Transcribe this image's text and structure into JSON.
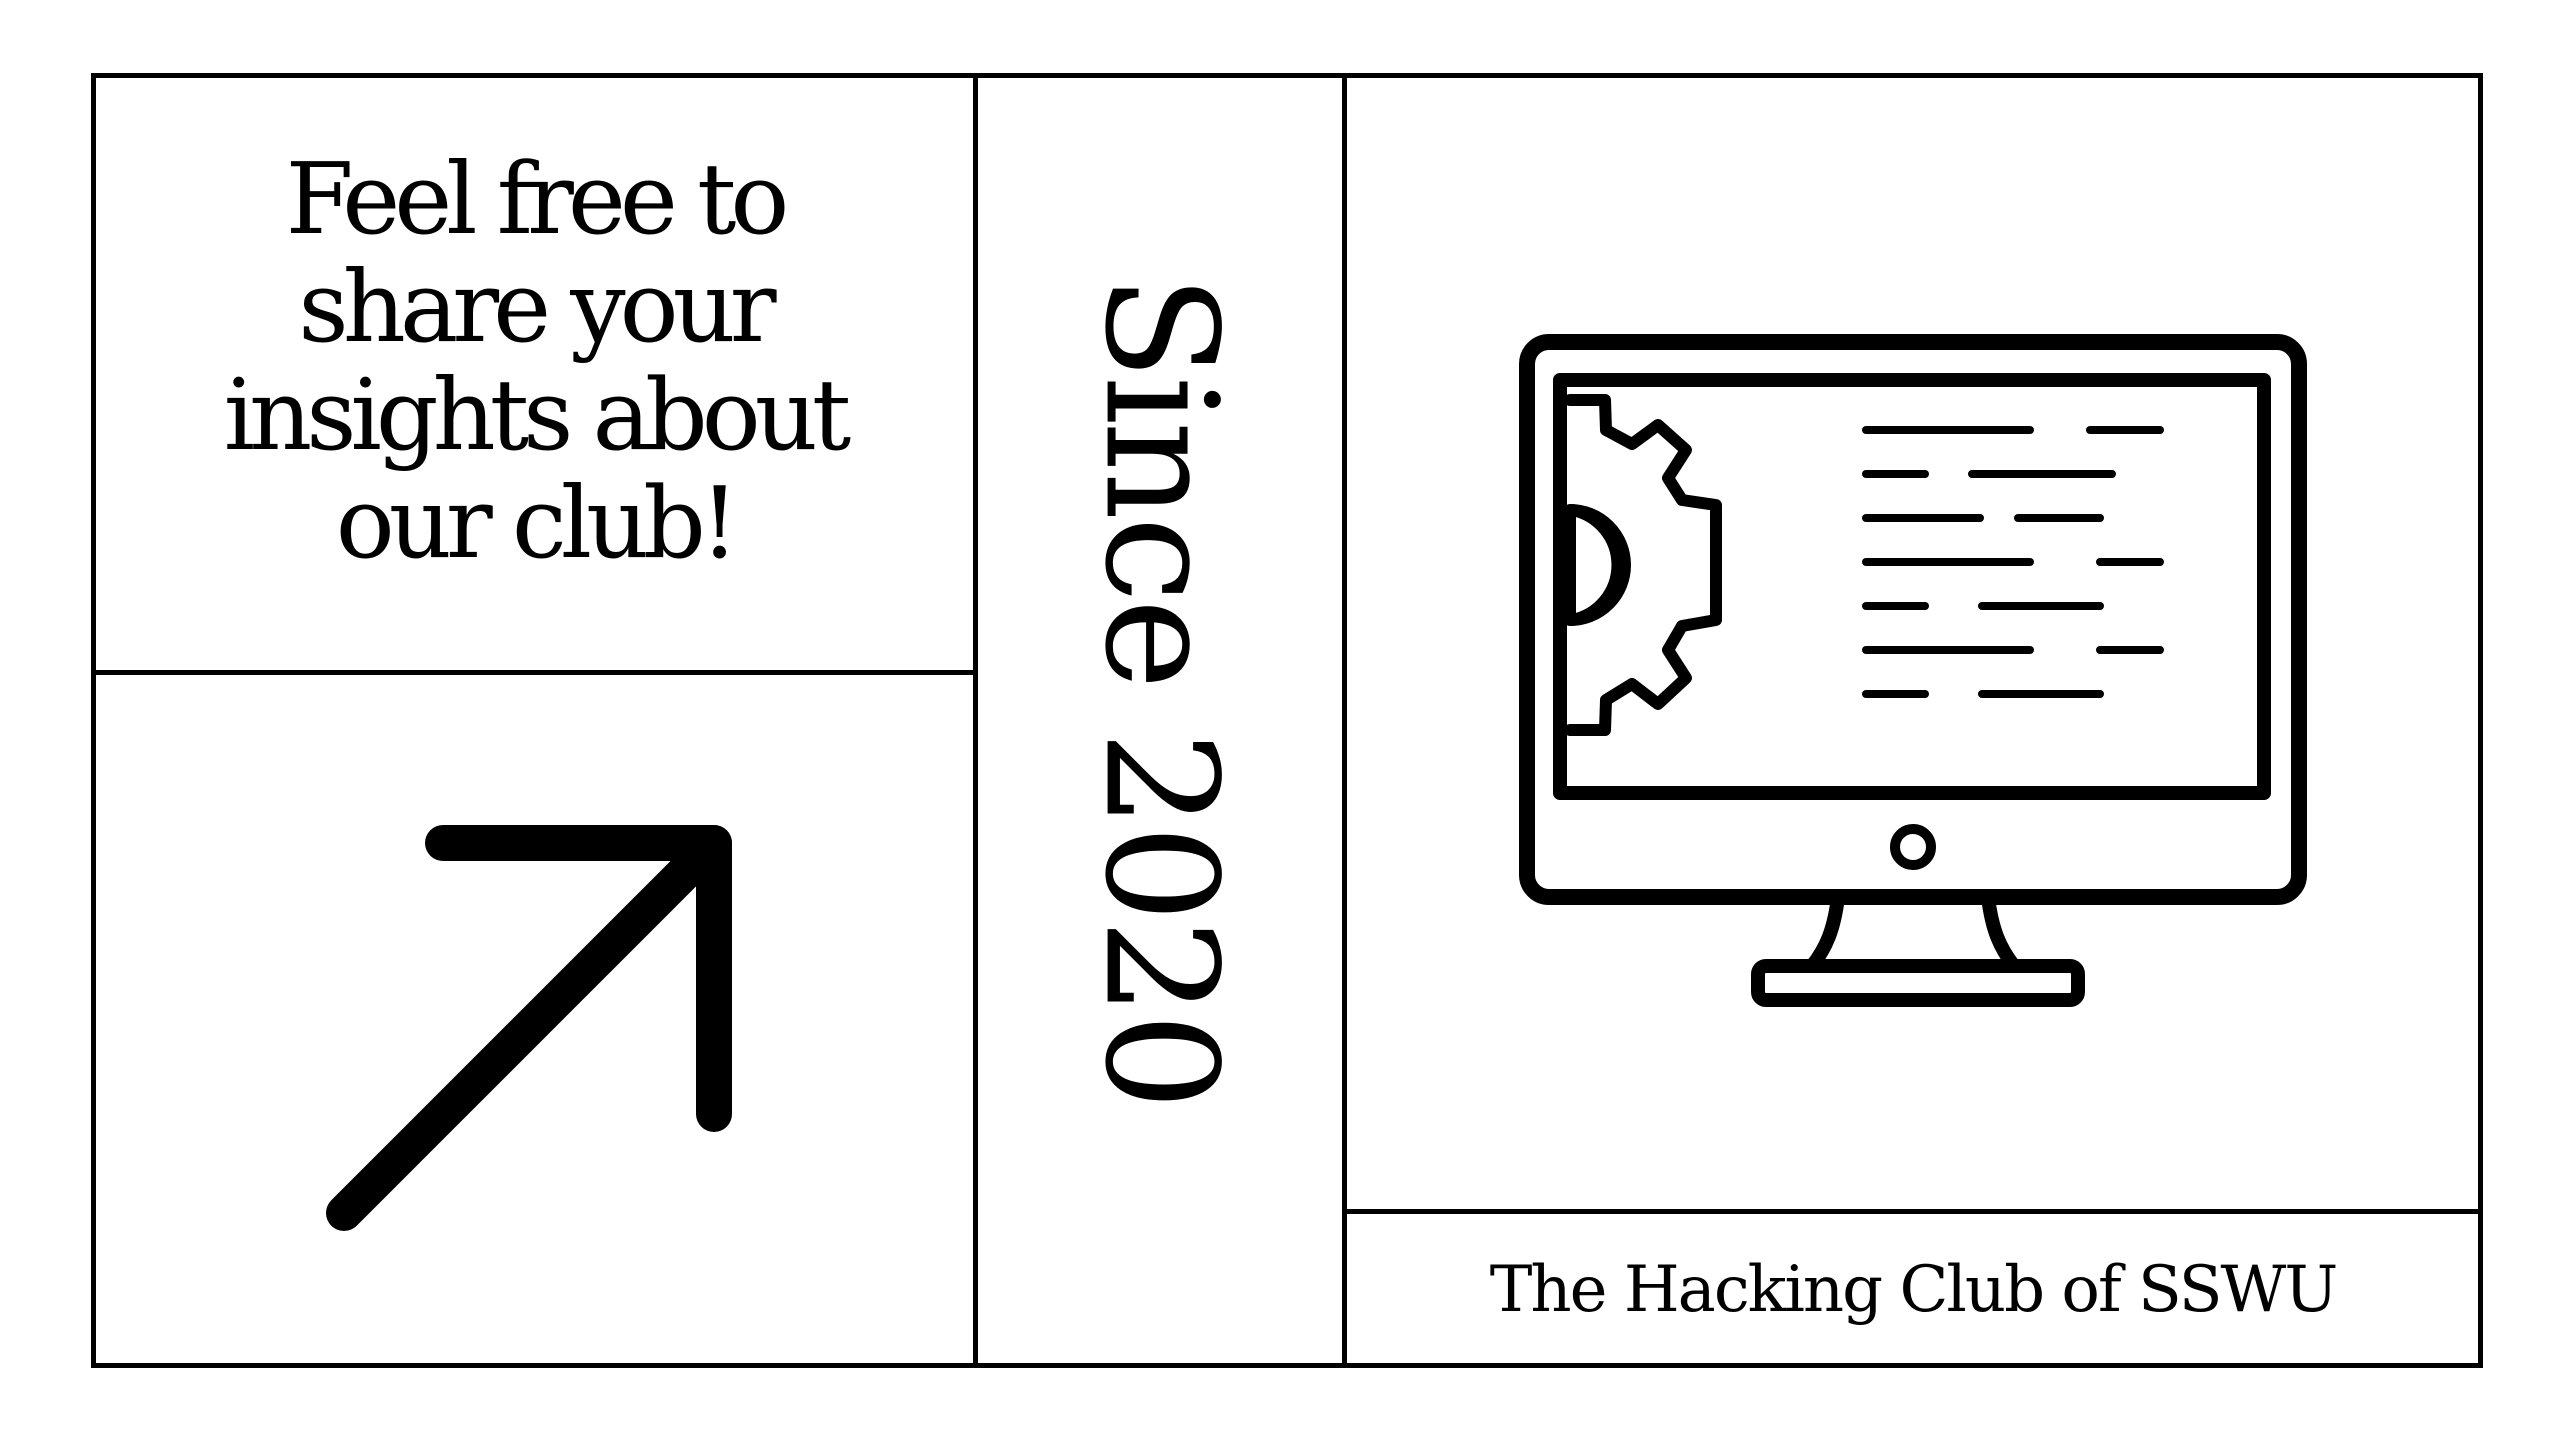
{
  "invite": {
    "lines": [
      "Feel free to",
      "share your",
      "insights about",
      "our club!"
    ]
  },
  "since": {
    "label": "Since 2020"
  },
  "club": {
    "name": "The Hacking Club of SSWU"
  },
  "icons": {
    "arrow": "arrow-up-right-icon",
    "monitor": "monitor-gear-icon"
  },
  "colors": {
    "ink": "#000000",
    "background": "#ffffff"
  }
}
